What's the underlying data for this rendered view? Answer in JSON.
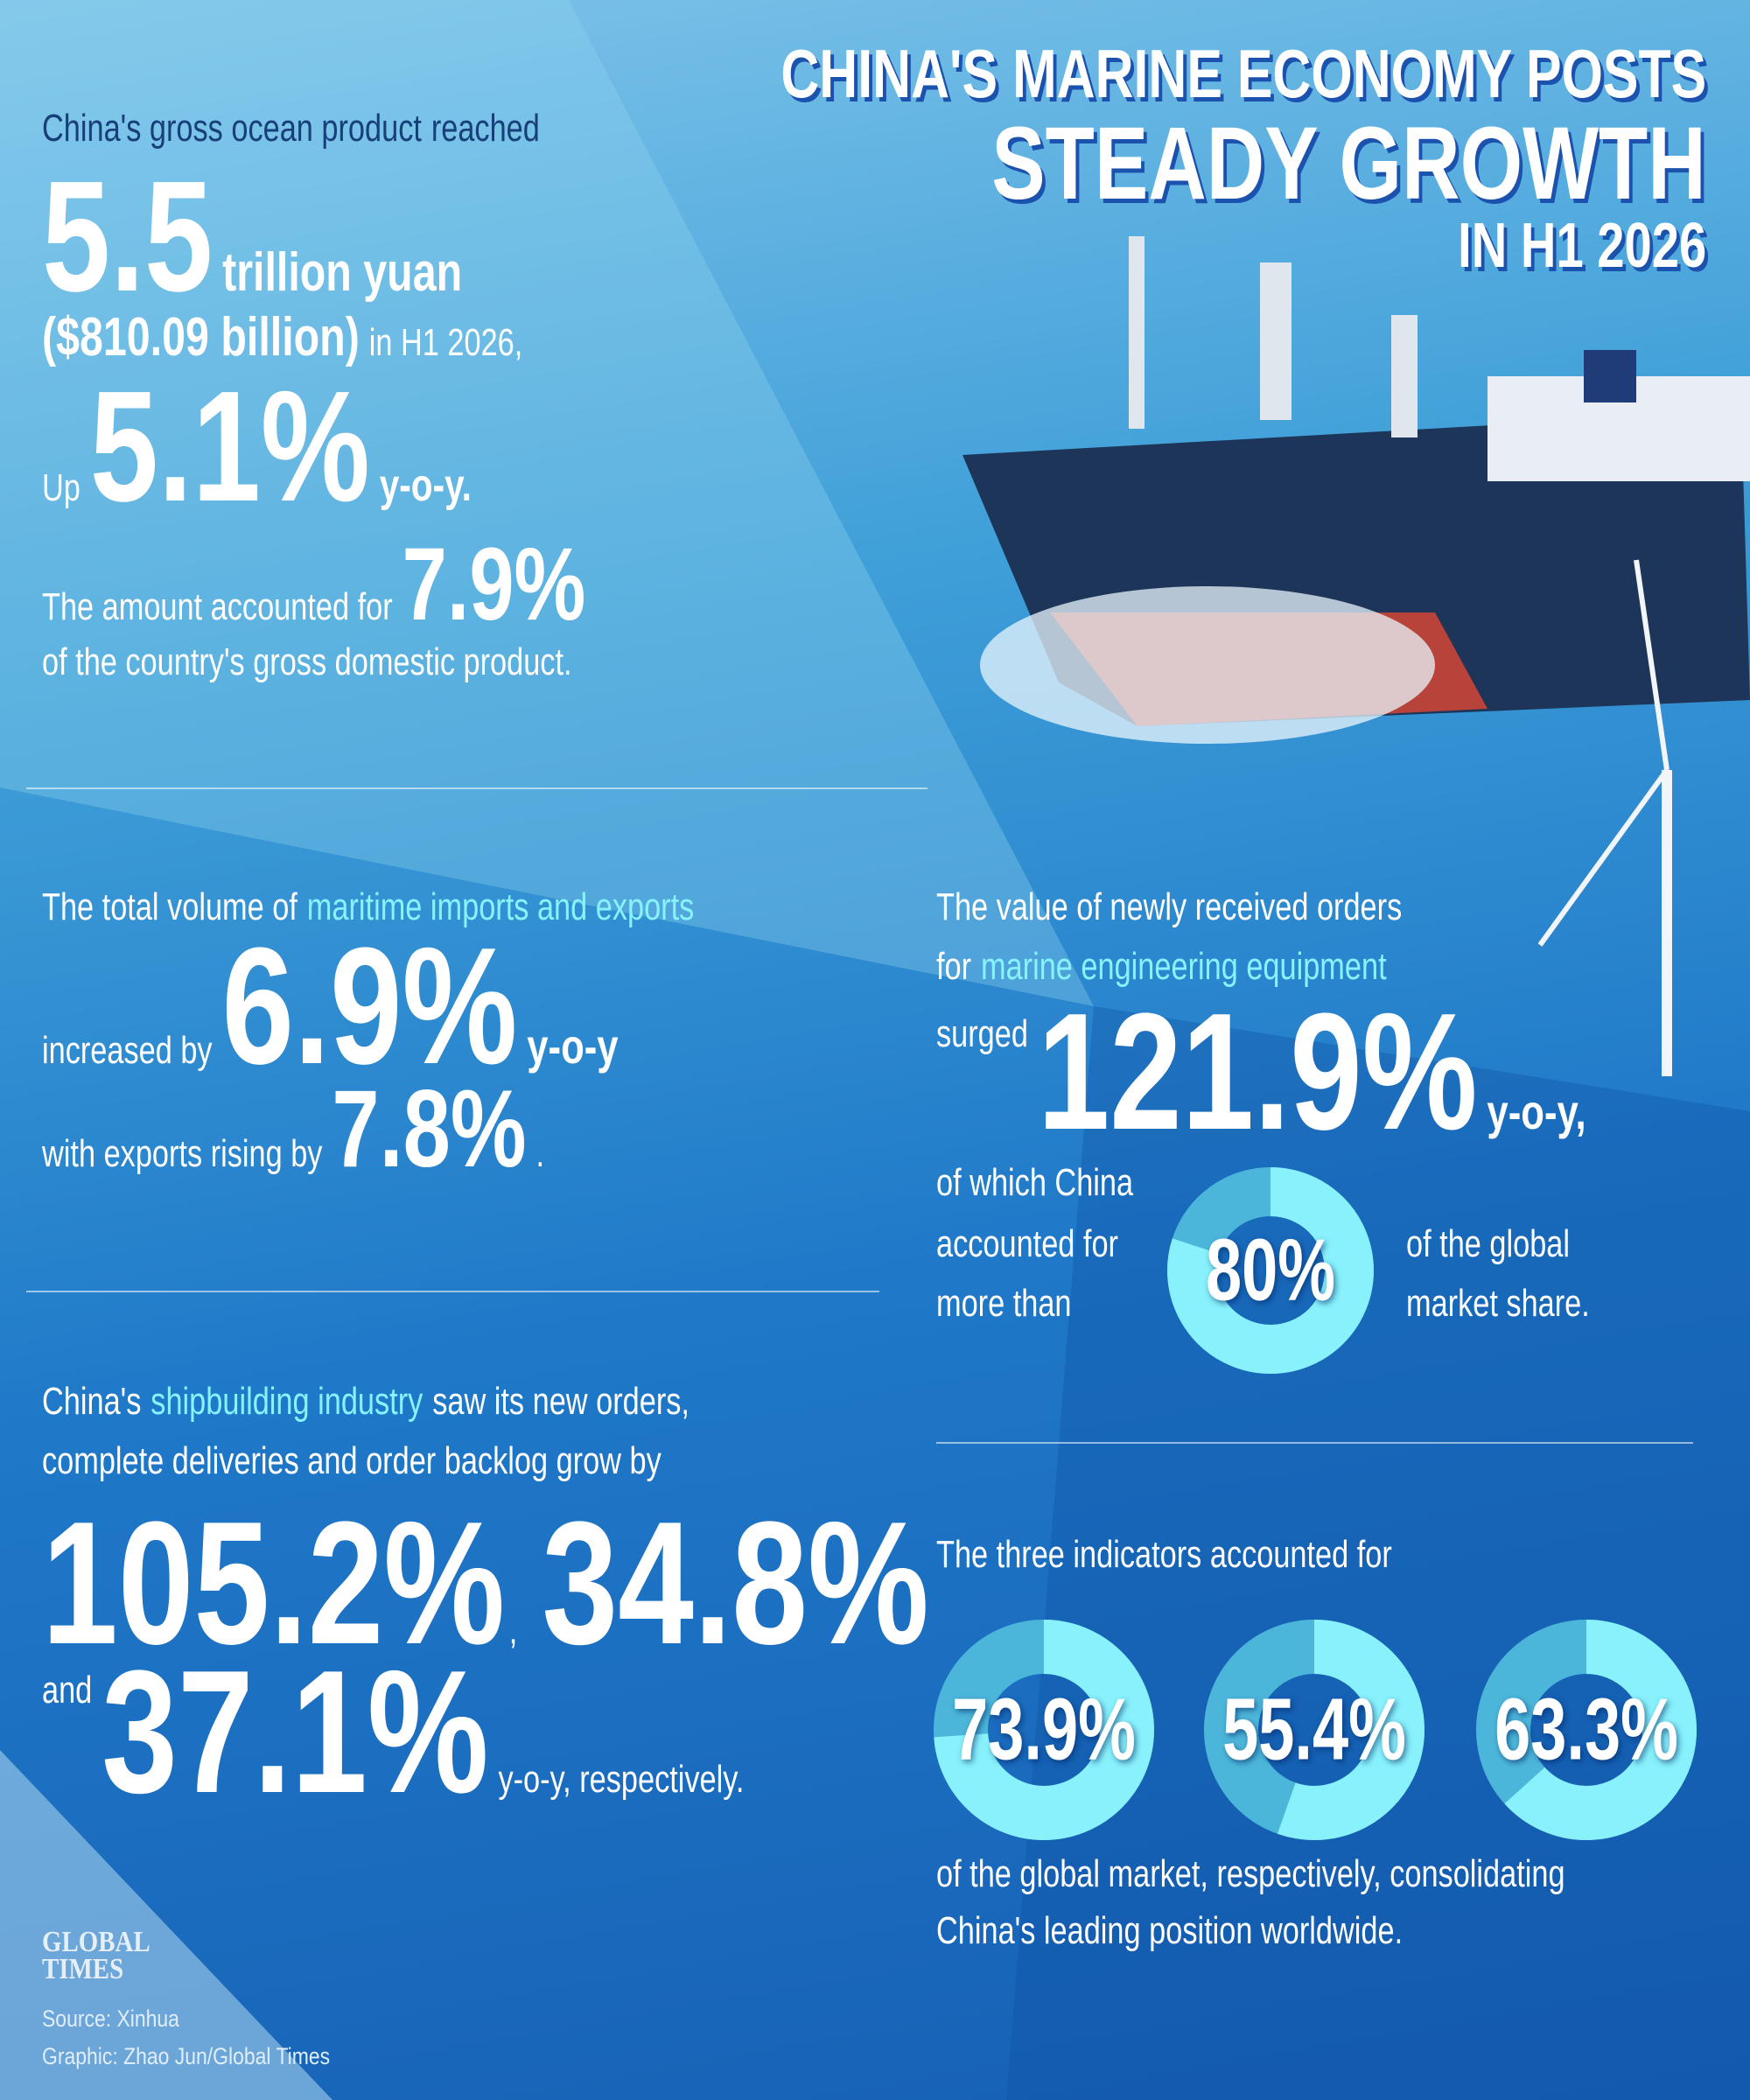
{
  "header": {
    "title": [
      "CHINA'S MARINE ECONOMY POSTS",
      "STEADY GROWTH",
      "IN H1 2026"
    ]
  },
  "ocean_product": {
    "texts": [
      "China's gross ocean product",
      "reached",
      "5.5",
      "trillion yuan",
      "($810.09 billion)",
      "in H1 2026,",
      "Up",
      "5.1%",
      "y-o-y.",
      "The amount accounted for",
      "7.9%",
      "of the country's gross domestic product."
    ]
  },
  "maritime_trade": {
    "texts": [
      "The total volume of",
      "maritime imports and exports",
      "increased by",
      "6.9%",
      "y-o-y",
      "with exports rising by",
      "7.8%",
      "."
    ]
  },
  "shipbuilding": {
    "texts": [
      "China's",
      "shipbuilding industry",
      "saw its new orders,",
      "complete deliveries and order backlog grow by",
      "105.2%",
      ",",
      "34.8%",
      "and",
      "37.1%",
      "y-o-y, respectively."
    ]
  },
  "marine_engineering": {
    "texts": [
      "The value of newly received orders",
      "for",
      "marine engineering equipment",
      "surged",
      "121.9%",
      "y-o-y,",
      "of which China",
      "accounted for",
      "more than",
      "of the global",
      "market share."
    ],
    "share": {
      "value": 80,
      "label": "80%"
    }
  },
  "global_share": {
    "intro": "The three indicators accounted for",
    "shares": [
      {
        "value": 73.9,
        "label": "73.9%"
      },
      {
        "value": 55.4,
        "label": "55.4%"
      },
      {
        "value": 63.3,
        "label": "63.3%"
      }
    ],
    "outro": [
      "of the global market, respectively, consolidating",
      "China's leading position worldwide."
    ]
  },
  "footer": {
    "logo": [
      "GLOBAL",
      "TIMES"
    ],
    "source": "Source: Xinhua",
    "credit": "Graphic: Zhao Jun/Global Times"
  }
}
